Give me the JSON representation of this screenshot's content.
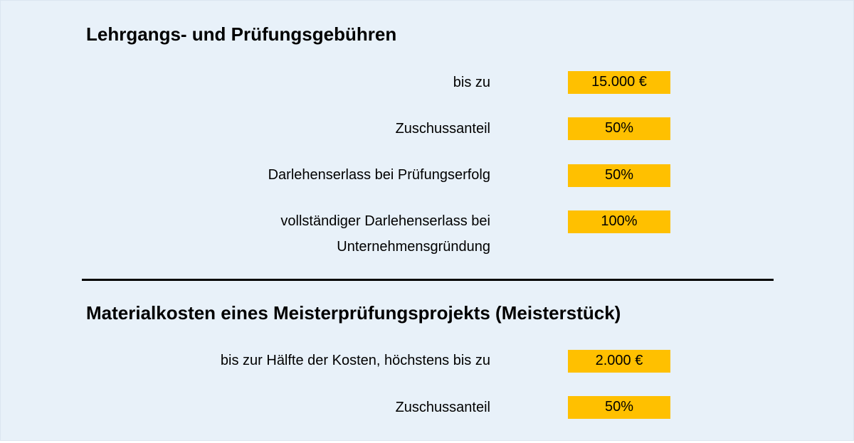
{
  "colors": {
    "background": "#e8f1f9",
    "value_highlight": "#ffc000",
    "text": "#000000"
  },
  "section1": {
    "title": "Lehrgangs- und Prüfungsgebühren",
    "rows": [
      {
        "label": "bis zu",
        "value": "15.000 €"
      },
      {
        "label": "Zuschussanteil",
        "value": "50%"
      },
      {
        "label": "Darlehenserlass bei Prüfungserfolg",
        "value": "50%"
      },
      {
        "label_line1": "vollständiger Darlehenserlass bei",
        "label_line2": "Unternehmensgründung",
        "value": "100%"
      }
    ]
  },
  "section2": {
    "title": "Materialkosten eines Meisterprüfungsprojekts (Meisterstück)",
    "rows": [
      {
        "label": "bis zur Hälfte der Kosten, höchstens bis zu",
        "value": "2.000 €"
      },
      {
        "label": "Zuschussanteil",
        "value": "50%"
      }
    ]
  }
}
